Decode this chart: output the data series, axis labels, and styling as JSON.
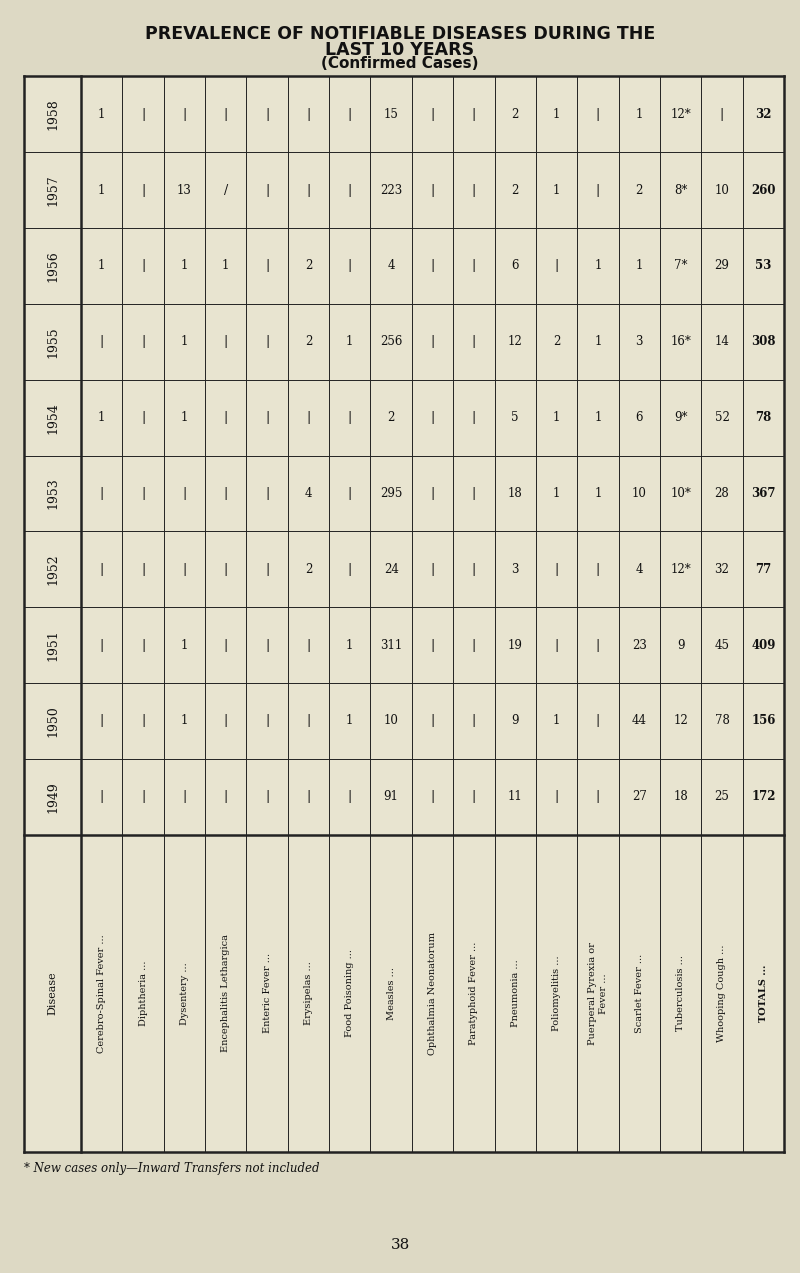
{
  "title_line1": "PREVALENCE OF NOTIFIABLE DISEASES DURING THE",
  "title_line2": "LAST 10 YEARS",
  "title_line3": "(Confirmed Cases)",
  "footnote": "* New cases only—Inward Transfers not included",
  "page_number": "38",
  "years": [
    "1958",
    "1957",
    "1956",
    "1955",
    "1954",
    "1953",
    "1952",
    "1951",
    "1950",
    "1949"
  ],
  "diseases": [
    "Cerebro-Spinal Fever ...",
    "Diphtheria ...",
    "Dysentery ...",
    "Encephalitis Lethargica",
    "Enteric Fever ...",
    "Erysipelas ...",
    "Food Poisoning ...",
    "Measles ...",
    "Ophthalmia Neonatorum",
    "Paratyphoid Fever ...",
    "Pneumonia ...",
    "Poliomyelitis ...",
    "Puerperal Pyrexia or\nFever ...",
    "Scarlet Fever ...",
    "Tuberculosis ...",
    "Whooping Cough ...",
    "TOTALS ..."
  ],
  "data_by_year": {
    "1958": [
      "1",
      "|",
      "|",
      "|",
      "|",
      "|",
      "|",
      "15",
      "|",
      "|",
      "2",
      "1",
      "|",
      "1",
      "12*",
      "|",
      "32"
    ],
    "1957": [
      "1",
      "|",
      "13",
      "/",
      "|",
      "|",
      "|",
      "223",
      "|",
      "|",
      "2",
      "1",
      "|",
      "2",
      "8*",
      "10",
      "260"
    ],
    "1956": [
      "1",
      "|",
      "1",
      "1",
      "|",
      "2",
      "|",
      "4",
      "|",
      "|",
      "6",
      "|",
      "1",
      "1",
      "7*",
      "29",
      "53"
    ],
    "1955": [
      "|",
      "|",
      "1",
      "|",
      "|",
      "2",
      "1",
      "256",
      "|",
      "|",
      "12",
      "2",
      "1",
      "3",
      "16*",
      "14",
      "308"
    ],
    "1954": [
      "1",
      "|",
      "1",
      "|",
      "|",
      "|",
      "|",
      "2",
      "|",
      "|",
      "5",
      "1",
      "1",
      "6",
      "9*",
      "52",
      "78"
    ],
    "1953": [
      "|",
      "|",
      "|",
      "|",
      "|",
      "4",
      "|",
      "295",
      "|",
      "|",
      "18",
      "1",
      "1",
      "10",
      "10*",
      "28",
      "367"
    ],
    "1952": [
      "|",
      "|",
      "|",
      "|",
      "|",
      "2",
      "|",
      "24",
      "|",
      "|",
      "3",
      "|",
      "|",
      "4",
      "12*",
      "32",
      "77"
    ],
    "1951": [
      "|",
      "|",
      "1",
      "|",
      "|",
      "|",
      "1",
      "311",
      "|",
      "|",
      "19",
      "|",
      "|",
      "23",
      "9",
      "45",
      "409"
    ],
    "1950": [
      "|",
      "|",
      "1",
      "|",
      "|",
      "|",
      "1",
      "10",
      "|",
      "|",
      "9",
      "1",
      "|",
      "44",
      "12",
      "78",
      "156"
    ],
    "1949": [
      "|",
      "|",
      "|",
      "|",
      "|",
      "|",
      "|",
      "91",
      "|",
      "|",
      "11",
      "|",
      "|",
      "27",
      "18",
      "25",
      "172"
    ]
  },
  "bg_color": "#ddd9c4",
  "cell_bg": "#e8e4d0",
  "line_color": "#222222",
  "text_color": "#111111"
}
